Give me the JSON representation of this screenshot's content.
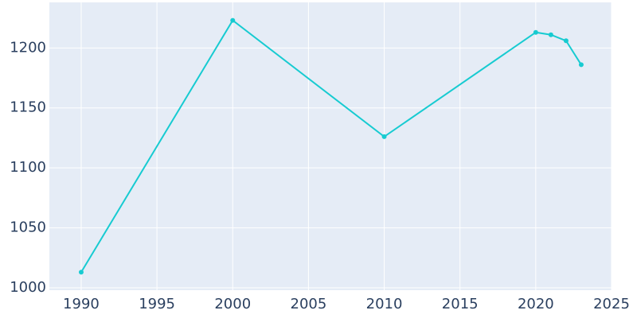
{
  "chart_data": {
    "type": "line",
    "x": [
      1990,
      2000,
      2010,
      2020,
      2021,
      2022,
      2023
    ],
    "series": [
      {
        "color": "#17cbd1",
        "values": [
          1013,
          1223,
          1126,
          1213,
          1211,
          1206,
          1186
        ]
      }
    ],
    "xlim": [
      1987.9,
      2025
    ],
    "xticks": [
      1990,
      1995,
      2000,
      2005,
      2010,
      2015,
      2020,
      2025
    ],
    "ylim": [
      998,
      1238
    ],
    "yticks": [
      1000,
      1050,
      1100,
      1150,
      1200
    ],
    "grid": true
  }
}
